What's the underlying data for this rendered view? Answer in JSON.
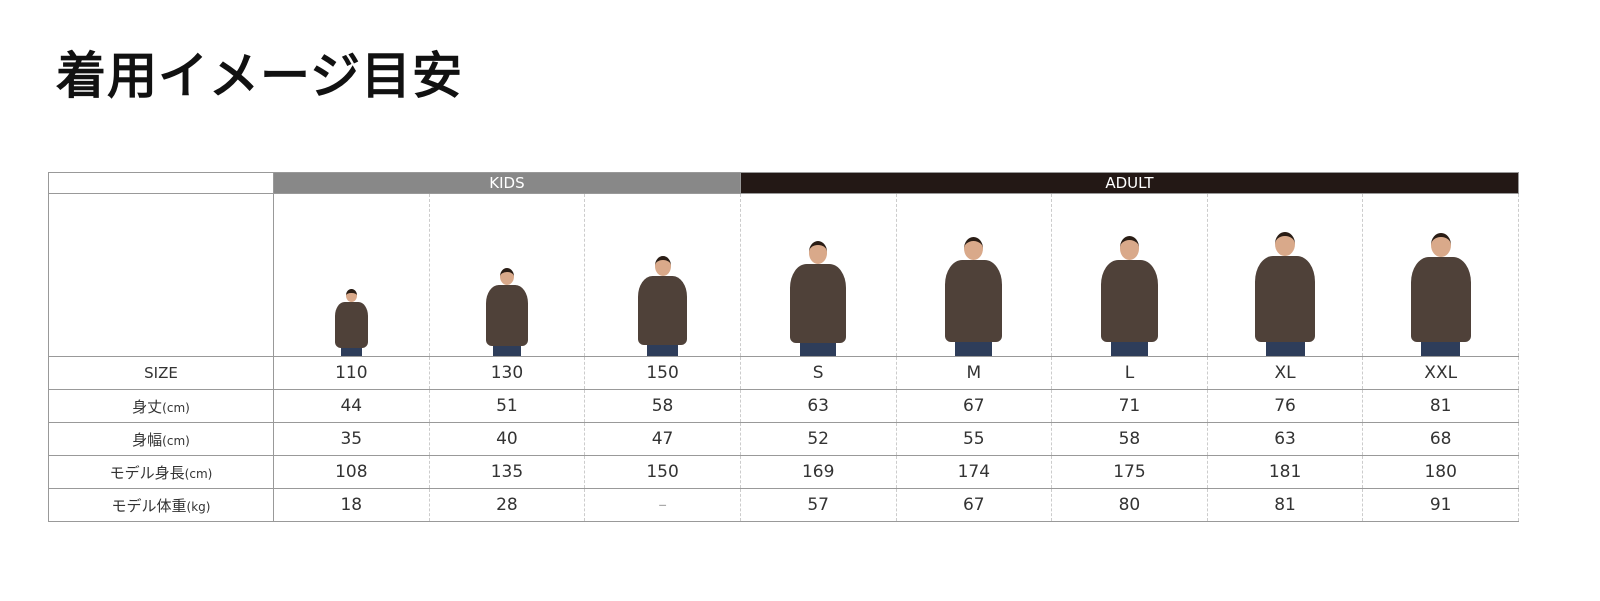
{
  "title": "着用イメージ目安",
  "groups": {
    "kids": "KIDS",
    "adult": "ADULT"
  },
  "colors": {
    "kids_header": "#888888",
    "adult_header": "#231815",
    "hoodie": "#4f4139"
  },
  "columns": [
    "110",
    "130",
    "150",
    "S",
    "M",
    "L",
    "XL",
    "XXL"
  ],
  "rows": [
    {
      "label": "SIZE",
      "unit": "",
      "values": [
        "110",
        "130",
        "150",
        "S",
        "M",
        "L",
        "XL",
        "XXL"
      ]
    },
    {
      "label": "身丈",
      "unit": "(cm)",
      "values": [
        "44",
        "51",
        "58",
        "63",
        "67",
        "71",
        "76",
        "81"
      ]
    },
    {
      "label": "身幅",
      "unit": "(cm)",
      "values": [
        "35",
        "40",
        "47",
        "52",
        "55",
        "58",
        "63",
        "68"
      ]
    },
    {
      "label": "モデル身長",
      "unit": "(cm)",
      "values": [
        "108",
        "135",
        "150",
        "169",
        "174",
        "175",
        "181",
        "180"
      ]
    },
    {
      "label": "モデル体重",
      "unit": "(kg)",
      "values": [
        "18",
        "28",
        "–",
        "57",
        "67",
        "80",
        "81",
        "91"
      ]
    }
  ],
  "model_images": [
    "model-110",
    "model-130",
    "model-150",
    "model-s",
    "model-m",
    "model-l",
    "model-xl",
    "model-xxl"
  ]
}
